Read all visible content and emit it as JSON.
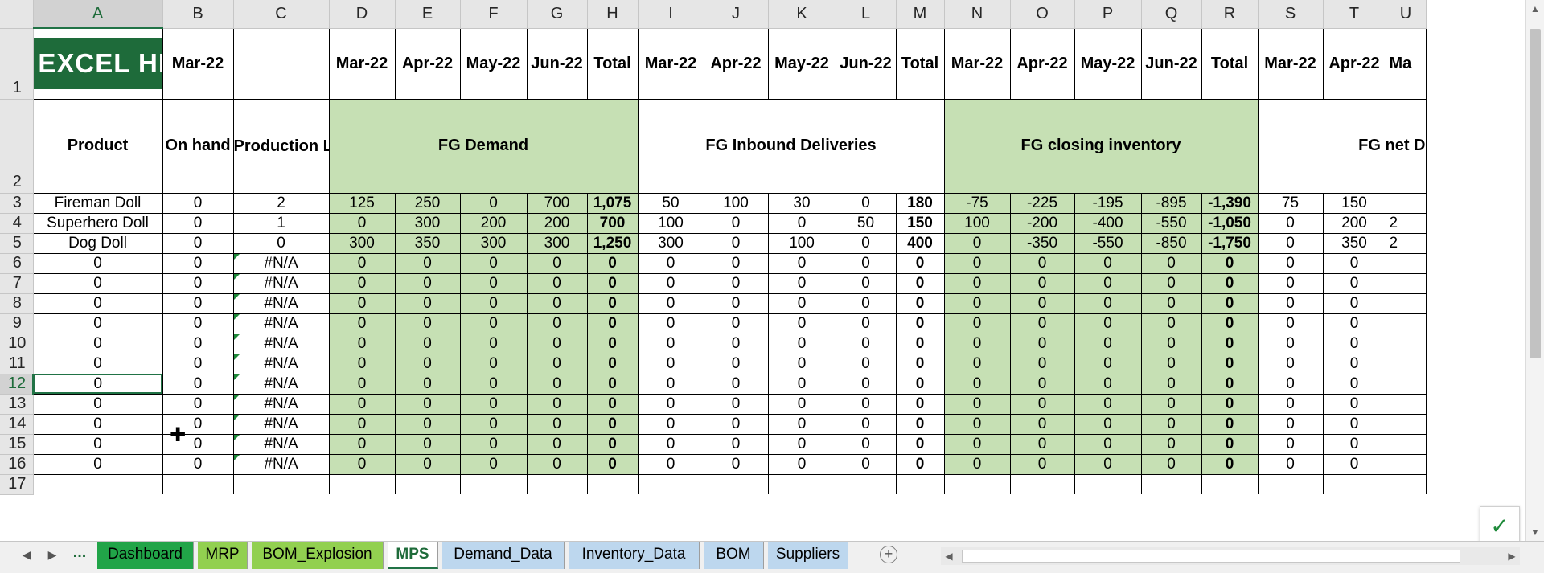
{
  "logo": {
    "text": "EXCEL HIGHWAY"
  },
  "columns": [
    "A",
    "B",
    "C",
    "D",
    "E",
    "F",
    "G",
    "H",
    "I",
    "J",
    "K",
    "L",
    "M",
    "N",
    "O",
    "P",
    "Q",
    "R",
    "S",
    "T",
    "U"
  ],
  "row1": {
    "B": "Mar-22",
    "months": [
      "Mar-22",
      "Apr-22",
      "May-22",
      "Jun-22"
    ],
    "total": "Total",
    "partial": "Ma"
  },
  "row2": {
    "product": "Product",
    "on_hand": "On hand",
    "lead_time": "Production Lead Time [Mn]",
    "sec1": "FG Demand",
    "sec2": "FG Inbound Deliveries",
    "sec3": "FG closing inventory",
    "sec4": "FG net D"
  },
  "rows": [
    {
      "num": "3",
      "A": "Fireman Doll",
      "B": "0",
      "C": "2",
      "D": "125",
      "E": "250",
      "F": "0",
      "G": "700",
      "H": "1,075",
      "I": "50",
      "J": "100",
      "K": "30",
      "L": "0",
      "M": "180",
      "N": "-75",
      "O": "-225",
      "P": "-195",
      "Q": "-895",
      "R": "-1,390",
      "S": "75",
      "T": "150",
      "U": ""
    },
    {
      "num": "4",
      "A": "Superhero Doll",
      "B": "0",
      "C": "1",
      "D": "0",
      "E": "300",
      "F": "200",
      "G": "200",
      "H": "700",
      "I": "100",
      "J": "0",
      "K": "0",
      "L": "50",
      "M": "150",
      "N": "100",
      "O": "-200",
      "P": "-400",
      "Q": "-550",
      "R": "-1,050",
      "S": "0",
      "T": "200",
      "U": "2"
    },
    {
      "num": "5",
      "A": "Dog Doll",
      "B": "0",
      "C": "0",
      "D": "300",
      "E": "350",
      "F": "300",
      "G": "300",
      "H": "1,250",
      "I": "300",
      "J": "0",
      "K": "100",
      "L": "0",
      "M": "400",
      "N": "0",
      "O": "-350",
      "P": "-550",
      "Q": "-850",
      "R": "-1,750",
      "S": "0",
      "T": "350",
      "U": "2"
    },
    {
      "num": "6",
      "A": "0",
      "B": "0",
      "C": "#N/A",
      "D": "0",
      "E": "0",
      "F": "0",
      "G": "0",
      "H": "0",
      "I": "0",
      "J": "0",
      "K": "0",
      "L": "0",
      "M": "0",
      "N": "0",
      "O": "0",
      "P": "0",
      "Q": "0",
      "R": "0",
      "S": "0",
      "T": "0",
      "U": ""
    },
    {
      "num": "7",
      "A": "0",
      "B": "0",
      "C": "#N/A",
      "D": "0",
      "E": "0",
      "F": "0",
      "G": "0",
      "H": "0",
      "I": "0",
      "J": "0",
      "K": "0",
      "L": "0",
      "M": "0",
      "N": "0",
      "O": "0",
      "P": "0",
      "Q": "0",
      "R": "0",
      "S": "0",
      "T": "0",
      "U": ""
    },
    {
      "num": "8",
      "A": "0",
      "B": "0",
      "C": "#N/A",
      "D": "0",
      "E": "0",
      "F": "0",
      "G": "0",
      "H": "0",
      "I": "0",
      "J": "0",
      "K": "0",
      "L": "0",
      "M": "0",
      "N": "0",
      "O": "0",
      "P": "0",
      "Q": "0",
      "R": "0",
      "S": "0",
      "T": "0",
      "U": ""
    },
    {
      "num": "9",
      "A": "0",
      "B": "0",
      "C": "#N/A",
      "D": "0",
      "E": "0",
      "F": "0",
      "G": "0",
      "H": "0",
      "I": "0",
      "J": "0",
      "K": "0",
      "L": "0",
      "M": "0",
      "N": "0",
      "O": "0",
      "P": "0",
      "Q": "0",
      "R": "0",
      "S": "0",
      "T": "0",
      "U": ""
    },
    {
      "num": "10",
      "A": "0",
      "B": "0",
      "C": "#N/A",
      "D": "0",
      "E": "0",
      "F": "0",
      "G": "0",
      "H": "0",
      "I": "0",
      "J": "0",
      "K": "0",
      "L": "0",
      "M": "0",
      "N": "0",
      "O": "0",
      "P": "0",
      "Q": "0",
      "R": "0",
      "S": "0",
      "T": "0",
      "U": ""
    },
    {
      "num": "11",
      "A": "0",
      "B": "0",
      "C": "#N/A",
      "D": "0",
      "E": "0",
      "F": "0",
      "G": "0",
      "H": "0",
      "I": "0",
      "J": "0",
      "K": "0",
      "L": "0",
      "M": "0",
      "N": "0",
      "O": "0",
      "P": "0",
      "Q": "0",
      "R": "0",
      "S": "0",
      "T": "0",
      "U": ""
    },
    {
      "num": "12",
      "A": "0",
      "B": "0",
      "C": "#N/A",
      "D": "0",
      "E": "0",
      "F": "0",
      "G": "0",
      "H": "0",
      "I": "0",
      "J": "0",
      "K": "0",
      "L": "0",
      "M": "0",
      "N": "0",
      "O": "0",
      "P": "0",
      "Q": "0",
      "R": "0",
      "S": "0",
      "T": "0",
      "U": ""
    },
    {
      "num": "13",
      "A": "0",
      "B": "0",
      "C": "#N/A",
      "D": "0",
      "E": "0",
      "F": "0",
      "G": "0",
      "H": "0",
      "I": "0",
      "J": "0",
      "K": "0",
      "L": "0",
      "M": "0",
      "N": "0",
      "O": "0",
      "P": "0",
      "Q": "0",
      "R": "0",
      "S": "0",
      "T": "0",
      "U": ""
    },
    {
      "num": "14",
      "A": "0",
      "B": "0",
      "C": "#N/A",
      "D": "0",
      "E": "0",
      "F": "0",
      "G": "0",
      "H": "0",
      "I": "0",
      "J": "0",
      "K": "0",
      "L": "0",
      "M": "0",
      "N": "0",
      "O": "0",
      "P": "0",
      "Q": "0",
      "R": "0",
      "S": "0",
      "T": "0",
      "U": ""
    },
    {
      "num": "15",
      "A": "0",
      "B": "0",
      "C": "#N/A",
      "D": "0",
      "E": "0",
      "F": "0",
      "G": "0",
      "H": "0",
      "I": "0",
      "J": "0",
      "K": "0",
      "L": "0",
      "M": "0",
      "N": "0",
      "O": "0",
      "P": "0",
      "Q": "0",
      "R": "0",
      "S": "0",
      "T": "0",
      "U": ""
    },
    {
      "num": "16",
      "A": "0",
      "B": "0",
      "C": "#N/A",
      "D": "0",
      "E": "0",
      "F": "0",
      "G": "0",
      "H": "0",
      "I": "0",
      "J": "0",
      "K": "0",
      "L": "0",
      "M": "0",
      "N": "0",
      "O": "0",
      "P": "0",
      "Q": "0",
      "R": "0",
      "S": "0",
      "T": "0",
      "U": ""
    },
    {
      "num": "17",
      "A": "",
      "B": "",
      "C": "",
      "D": "",
      "E": "",
      "F": "",
      "G": "",
      "H": "",
      "I": "",
      "J": "",
      "K": "",
      "L": "",
      "M": "",
      "N": "",
      "O": "",
      "P": "",
      "Q": "",
      "R": "",
      "S": "",
      "T": "",
      "U": ""
    }
  ],
  "selection": {
    "cell": "A12",
    "row": "12",
    "column": "A"
  },
  "tabs": [
    {
      "label": "Dashboard",
      "color": "#21a448",
      "text_color": "#000000"
    },
    {
      "label": "MRP",
      "color": "#92d050",
      "text_color": "#000000"
    },
    {
      "label": "BOM_Explosion",
      "color": "#92d050",
      "text_color": "#000000"
    },
    {
      "label": "MPS",
      "color": "#ffffff",
      "text_color": "#1e6b3a",
      "active": true
    },
    {
      "label": "Demand_Data",
      "color": "#bdd7ee",
      "text_color": "#000000"
    },
    {
      "label": "Inventory_Data",
      "color": "#bdd7ee",
      "text_color": "#000000"
    },
    {
      "label": "BOM",
      "color": "#bdd7ee",
      "text_color": "#000000"
    },
    {
      "label": "Suppliers",
      "color": "#bdd7ee",
      "text_color": "#000000"
    }
  ],
  "tabbar": {
    "more": "...",
    "add_icon": "plus-circle-icon",
    "prev_icon": "chevron-left-icon",
    "next_icon": "chevron-right-icon"
  },
  "colors": {
    "green_fill": "#c6e0b4",
    "accent": "#217346",
    "logo_bg": "#1e6b3a"
  }
}
